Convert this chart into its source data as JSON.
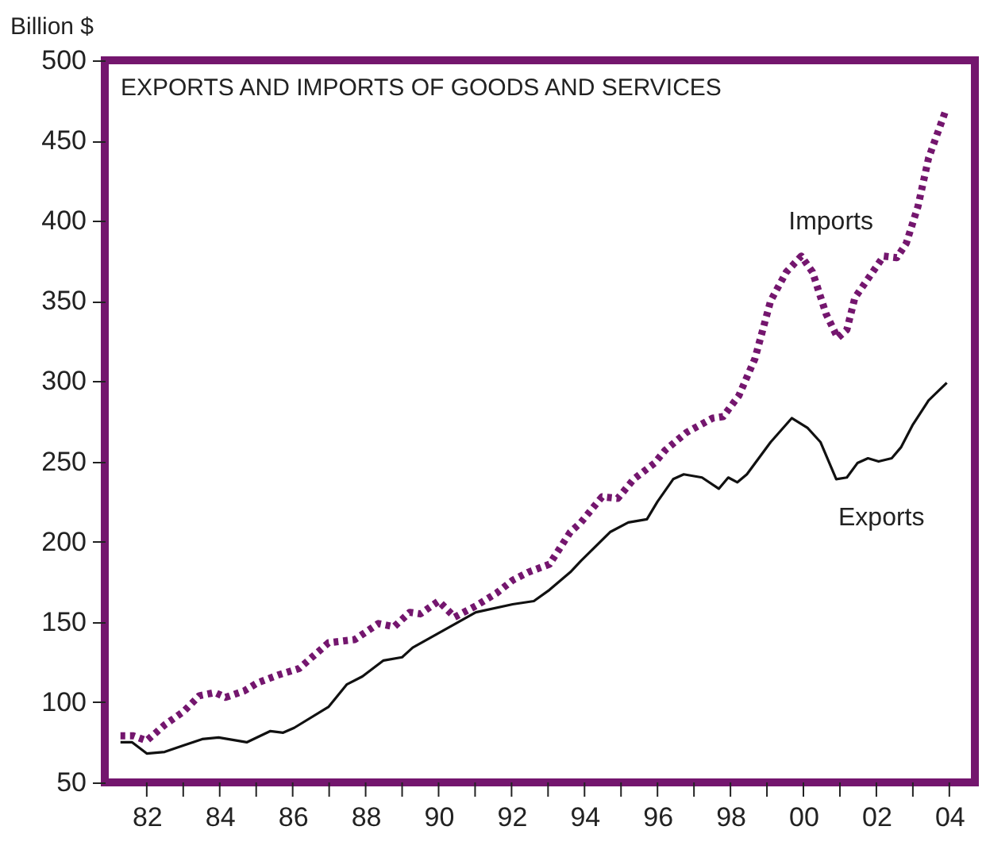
{
  "chart_data": {
    "type": "line",
    "title": "EXPORTS AND IMPORTS OF GOODS AND SERVICES",
    "ylabel": "Billion $",
    "xlim": [
      1980.85,
      2004.7
    ],
    "ylim": [
      50,
      500
    ],
    "xticks": [
      {
        "value": 1982,
        "label": "82"
      },
      {
        "value": 1983,
        "label": null
      },
      {
        "value": 1984,
        "label": "84"
      },
      {
        "value": 1985,
        "label": null
      },
      {
        "value": 1986,
        "label": "86"
      },
      {
        "value": 1987,
        "label": null
      },
      {
        "value": 1988,
        "label": "88"
      },
      {
        "value": 1989,
        "label": null
      },
      {
        "value": 1990,
        "label": "90"
      },
      {
        "value": 1991,
        "label": null
      },
      {
        "value": 1992,
        "label": "92"
      },
      {
        "value": 1993,
        "label": null
      },
      {
        "value": 1994,
        "label": "94"
      },
      {
        "value": 1995,
        "label": null
      },
      {
        "value": 1996,
        "label": "96"
      },
      {
        "value": 1997,
        "label": null
      },
      {
        "value": 1998,
        "label": "98"
      },
      {
        "value": 1999,
        "label": null
      },
      {
        "value": 2000,
        "label": "00"
      },
      {
        "value": 2001,
        "label": null
      },
      {
        "value": 2002,
        "label": "02"
      },
      {
        "value": 2003,
        "label": null
      },
      {
        "value": 2004,
        "label": "04"
      }
    ],
    "yticks": [
      50,
      100,
      150,
      200,
      250,
      300,
      350,
      400,
      450,
      500
    ],
    "grid": false,
    "series": [
      {
        "name": "Imports",
        "color": "#74166e",
        "line_style": "dotted",
        "x": [
          1981.28,
          1981.64,
          1982.0,
          1982.5,
          1983.0,
          1983.44,
          1983.87,
          1984.16,
          1984.67,
          1985.03,
          1985.61,
          1986.18,
          1986.98,
          1987.7,
          1988.35,
          1988.78,
          1989.21,
          1989.5,
          1990.0,
          1990.44,
          1991.02,
          1991.59,
          1992.03,
          1992.46,
          1993.04,
          1993.61,
          1993.9,
          1994.48,
          1994.91,
          1995.35,
          1995.92,
          1996.21,
          1996.79,
          1997.51,
          1997.8,
          1998.23,
          1998.67,
          1999.1,
          1999.53,
          1999.94,
          2000.25,
          2000.62,
          2000.94,
          2001.19,
          2001.41,
          2002.2,
          2002.56,
          2002.82,
          2003.14,
          2003.43,
          2003.92
        ],
        "values": [
          79,
          79,
          76,
          86,
          94,
          104,
          106,
          103,
          107,
          112,
          117,
          121,
          137,
          139,
          149,
          147,
          156,
          155,
          163,
          153,
          160,
          168,
          176,
          181,
          186,
          206,
          212,
          228,
          227,
          239,
          249,
          257,
          268,
          277,
          278,
          291,
          314,
          350,
          368,
          378,
          368,
          342,
          327,
          332,
          352,
          378,
          377,
          386,
          409,
          439,
          470
        ]
      },
      {
        "name": "Exports",
        "color": "#111111",
        "line_style": "solid",
        "x": [
          1981.28,
          1981.6,
          1982.0,
          1982.49,
          1983.0,
          1983.52,
          1983.97,
          1984.74,
          1985.39,
          1985.74,
          1986.04,
          1986.98,
          1987.48,
          1987.91,
          1988.49,
          1989.0,
          1989.29,
          1990.0,
          1991.02,
          1992.03,
          1992.61,
          1993.04,
          1993.61,
          1993.9,
          1994.7,
          1995.2,
          1995.71,
          1996.0,
          1996.43,
          1996.72,
          1997.22,
          1997.68,
          1997.94,
          1998.19,
          1998.45,
          1999.1,
          1999.68,
          2000.11,
          2000.47,
          2000.9,
          2001.19,
          2001.48,
          2001.77,
          2002.06,
          2002.42,
          2002.68,
          2003.0,
          2003.43,
          2003.93
        ],
        "values": [
          75,
          75,
          68,
          69,
          73,
          77,
          78,
          75,
          82,
          81,
          84,
          97,
          111,
          116,
          126,
          128,
          134,
          143,
          156,
          161,
          163,
          170,
          181,
          188,
          206,
          212,
          214,
          225,
          239,
          242,
          240,
          233,
          240,
          237,
          242,
          262,
          277,
          271,
          262,
          239,
          240,
          249,
          252,
          250,
          252,
          259,
          273,
          288,
          299
        ]
      }
    ]
  }
}
